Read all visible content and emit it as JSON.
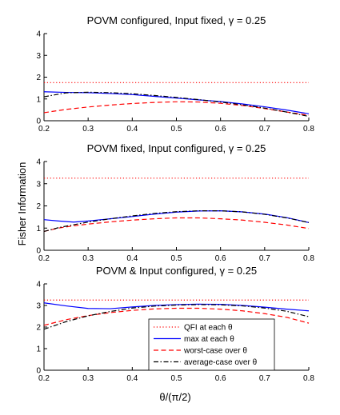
{
  "figure": {
    "ylabel": "Fisher Information",
    "xlabel": "θ/(π/2)"
  },
  "chart_data": [
    {
      "type": "line",
      "title": "POVM configured, Input fixed, γ = 0.25",
      "xlim": [
        0.2,
        0.8
      ],
      "ylim": [
        0,
        4
      ],
      "xticks": [
        "0.2",
        "0.3",
        "0.4",
        "0.5",
        "0.6",
        "0.7",
        "0.8"
      ],
      "yticks": [
        "0",
        "1",
        "2",
        "3",
        "4"
      ],
      "grid": false,
      "x": [
        0.2,
        0.25,
        0.3,
        0.35,
        0.4,
        0.45,
        0.5,
        0.55,
        0.6,
        0.65,
        0.7,
        0.75,
        0.8
      ],
      "series": [
        {
          "name": "QFI at each θ",
          "color": "#ff0000",
          "dash": "dotted",
          "values": [
            1.75,
            1.75,
            1.75,
            1.75,
            1.75,
            1.75,
            1.75,
            1.75,
            1.75,
            1.75,
            1.75,
            1.75,
            1.75
          ]
        },
        {
          "name": "max at each θ",
          "color": "#0000ff",
          "dash": "solid",
          "values": [
            1.33,
            1.3,
            1.29,
            1.25,
            1.2,
            1.12,
            1.04,
            0.96,
            0.88,
            0.77,
            0.64,
            0.49,
            0.32
          ]
        },
        {
          "name": "worst-case over θ",
          "color": "#ff0000",
          "dash": "dashed",
          "values": [
            0.37,
            0.52,
            0.63,
            0.72,
            0.79,
            0.84,
            0.87,
            0.86,
            0.8,
            0.7,
            0.56,
            0.4,
            0.25
          ]
        },
        {
          "name": "average-case over θ",
          "color": "#000000",
          "dash": "dashdot",
          "values": [
            1.1,
            1.28,
            1.31,
            1.29,
            1.24,
            1.16,
            1.07,
            0.97,
            0.86,
            0.73,
            0.58,
            0.4,
            0.2
          ]
        }
      ]
    },
    {
      "type": "line",
      "title": "POVM fixed, Input configured, γ = 0.25",
      "xlim": [
        0.2,
        0.8
      ],
      "ylim": [
        0,
        4
      ],
      "xticks": [
        "0.2",
        "0.3",
        "0.4",
        "0.5",
        "0.6",
        "0.7",
        "0.8"
      ],
      "yticks": [
        "0",
        "1",
        "2",
        "3",
        "4"
      ],
      "grid": false,
      "x": [
        0.2,
        0.233,
        0.267,
        0.3,
        0.35,
        0.4,
        0.45,
        0.5,
        0.55,
        0.6,
        0.65,
        0.7,
        0.75,
        0.8
      ],
      "series": [
        {
          "name": "QFI at each θ",
          "color": "#ff0000",
          "dash": "dotted",
          "values": [
            3.25,
            3.25,
            3.25,
            3.25,
            3.25,
            3.25,
            3.25,
            3.25,
            3.25,
            3.25,
            3.25,
            3.25,
            3.25,
            3.25
          ]
        },
        {
          "name": "max at each θ",
          "color": "#0000ff",
          "dash": "solid",
          "values": [
            1.38,
            1.32,
            1.27,
            1.32,
            1.42,
            1.52,
            1.63,
            1.72,
            1.77,
            1.78,
            1.73,
            1.63,
            1.47,
            1.25
          ]
        },
        {
          "name": "worst-case over θ",
          "color": "#ff0000",
          "dash": "dashed",
          "values": [
            0.85,
            1.0,
            1.1,
            1.18,
            1.28,
            1.36,
            1.42,
            1.46,
            1.46,
            1.42,
            1.36,
            1.26,
            1.14,
            0.98
          ]
        },
        {
          "name": "average-case over θ",
          "color": "#000000",
          "dash": "dashdot",
          "values": [
            0.85,
            1.02,
            1.15,
            1.27,
            1.42,
            1.55,
            1.66,
            1.74,
            1.78,
            1.78,
            1.73,
            1.62,
            1.46,
            1.25
          ]
        }
      ]
    },
    {
      "type": "line",
      "title": "POVM & Input configured, γ = 0.25",
      "xlim": [
        0.2,
        0.8
      ],
      "ylim": [
        0,
        4
      ],
      "xticks": [
        "0.2",
        "0.3",
        "0.4",
        "0.5",
        "0.6",
        "0.7",
        "0.8"
      ],
      "yticks": [
        "0",
        "1",
        "2",
        "3",
        "4"
      ],
      "grid": false,
      "legend": "lower-center",
      "x": [
        0.2,
        0.25,
        0.3,
        0.35,
        0.4,
        0.45,
        0.5,
        0.55,
        0.6,
        0.65,
        0.7,
        0.75,
        0.8
      ],
      "series": [
        {
          "name": "QFI at each θ",
          "color": "#ff0000",
          "dash": "dotted",
          "values": [
            3.25,
            3.25,
            3.25,
            3.25,
            3.25,
            3.25,
            3.25,
            3.25,
            3.25,
            3.25,
            3.25,
            3.25,
            3.25
          ]
        },
        {
          "name": "max at each θ",
          "color": "#0000ff",
          "dash": "solid",
          "values": [
            3.12,
            2.98,
            2.86,
            2.85,
            2.93,
            3.0,
            3.04,
            3.06,
            3.05,
            3.0,
            2.92,
            2.83,
            2.75
          ]
        },
        {
          "name": "worst-case over θ",
          "color": "#ff0000",
          "dash": "dashed",
          "values": [
            2.08,
            2.34,
            2.53,
            2.67,
            2.77,
            2.84,
            2.87,
            2.87,
            2.83,
            2.75,
            2.62,
            2.45,
            2.18
          ]
        },
        {
          "name": "average-case over θ",
          "color": "#000000",
          "dash": "dashdot",
          "values": [
            1.9,
            2.25,
            2.52,
            2.72,
            2.88,
            2.97,
            3.02,
            3.04,
            3.03,
            2.98,
            2.88,
            2.73,
            2.48
          ]
        }
      ]
    }
  ]
}
